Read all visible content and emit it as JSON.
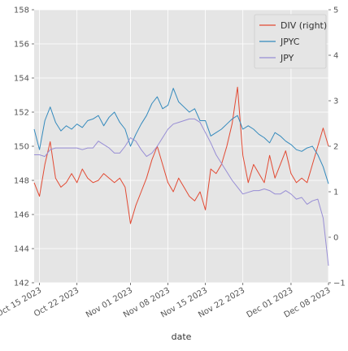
{
  "chart_data": {
    "type": "line",
    "xlabel": "date",
    "x_range": [
      "2023-10-14",
      "2023-12-08"
    ],
    "x_ticks": [
      {
        "label": "Oct 15 2023",
        "date": "2023-10-15"
      },
      {
        "label": "Oct 22 2023",
        "date": "2023-10-22"
      },
      {
        "label": "Nov 01 2023",
        "date": "2023-11-01"
      },
      {
        "label": "Nov 08 2023",
        "date": "2023-11-08"
      },
      {
        "label": "Nov 15 2023",
        "date": "2023-11-15"
      },
      {
        "label": "Nov 22 2023",
        "date": "2023-11-22"
      },
      {
        "label": "Dec 01 2023",
        "date": "2023-12-01"
      },
      {
        "label": "Dec 08 2023",
        "date": "2023-12-08"
      }
    ],
    "left_axis": {
      "ylim": [
        142,
        158
      ],
      "ticks": [
        "142",
        "144",
        "146",
        "148",
        "150",
        "152",
        "154",
        "156",
        "158"
      ]
    },
    "right_axis": {
      "ylim": [
        -1,
        5
      ],
      "ticks": [
        "−1",
        "0",
        "1",
        "2",
        "3",
        "4",
        "5"
      ]
    },
    "grid": true,
    "legend_position": "top-right",
    "series": [
      {
        "name": "DIV (right)",
        "axis": "right",
        "color": "#E24A33",
        "points": [
          [
            "2023-10-14",
            1.2
          ],
          [
            "2023-10-15",
            0.9
          ],
          [
            "2023-10-16",
            1.6
          ],
          [
            "2023-10-17",
            2.1
          ],
          [
            "2023-10-18",
            1.3
          ],
          [
            "2023-10-19",
            1.1
          ],
          [
            "2023-10-20",
            1.2
          ],
          [
            "2023-10-21",
            1.4
          ],
          [
            "2023-10-22",
            1.2
          ],
          [
            "2023-10-23",
            1.5
          ],
          [
            "2023-10-24",
            1.3
          ],
          [
            "2023-10-25",
            1.2
          ],
          [
            "2023-10-26",
            1.25
          ],
          [
            "2023-10-27",
            1.4
          ],
          [
            "2023-10-28",
            1.3
          ],
          [
            "2023-10-29",
            1.2
          ],
          [
            "2023-10-30",
            1.3
          ],
          [
            "2023-10-31",
            1.1
          ],
          [
            "2023-11-01",
            0.3
          ],
          [
            "2023-11-02",
            0.7
          ],
          [
            "2023-11-03",
            1.0
          ],
          [
            "2023-11-04",
            1.3
          ],
          [
            "2023-11-05",
            1.7
          ],
          [
            "2023-11-06",
            2.0
          ],
          [
            "2023-11-07",
            1.6
          ],
          [
            "2023-11-08",
            1.2
          ],
          [
            "2023-11-09",
            1.0
          ],
          [
            "2023-11-10",
            1.3
          ],
          [
            "2023-11-11",
            1.1
          ],
          [
            "2023-11-12",
            0.9
          ],
          [
            "2023-11-13",
            0.8
          ],
          [
            "2023-11-14",
            1.0
          ],
          [
            "2023-11-15",
            0.6
          ],
          [
            "2023-11-16",
            1.5
          ],
          [
            "2023-11-17",
            1.4
          ],
          [
            "2023-11-18",
            1.6
          ],
          [
            "2023-11-19",
            2.0
          ],
          [
            "2023-11-20",
            2.5
          ],
          [
            "2023-11-21",
            3.3
          ],
          [
            "2023-11-22",
            1.8
          ],
          [
            "2023-11-23",
            1.2
          ],
          [
            "2023-11-24",
            1.6
          ],
          [
            "2023-11-25",
            1.4
          ],
          [
            "2023-11-26",
            1.2
          ],
          [
            "2023-11-27",
            1.8
          ],
          [
            "2023-11-28",
            1.3
          ],
          [
            "2023-11-29",
            1.6
          ],
          [
            "2023-11-30",
            1.9
          ],
          [
            "2023-12-01",
            1.4
          ],
          [
            "2023-12-02",
            1.2
          ],
          [
            "2023-12-03",
            1.3
          ],
          [
            "2023-12-04",
            1.2
          ],
          [
            "2023-12-05",
            1.6
          ],
          [
            "2023-12-06",
            2.0
          ],
          [
            "2023-12-07",
            2.4
          ],
          [
            "2023-12-08",
            2.0
          ]
        ]
      },
      {
        "name": "JPYC",
        "axis": "left",
        "color": "#348ABD",
        "points": [
          [
            "2023-10-14",
            151.0
          ],
          [
            "2023-10-15",
            149.8
          ],
          [
            "2023-10-16",
            151.5
          ],
          [
            "2023-10-17",
            152.3
          ],
          [
            "2023-10-18",
            151.4
          ],
          [
            "2023-10-19",
            150.9
          ],
          [
            "2023-10-20",
            151.2
          ],
          [
            "2023-10-21",
            151.0
          ],
          [
            "2023-10-22",
            151.3
          ],
          [
            "2023-10-23",
            151.1
          ],
          [
            "2023-10-24",
            151.5
          ],
          [
            "2023-10-25",
            151.6
          ],
          [
            "2023-10-26",
            151.8
          ],
          [
            "2023-10-27",
            151.2
          ],
          [
            "2023-10-28",
            151.7
          ],
          [
            "2023-10-29",
            152.0
          ],
          [
            "2023-10-30",
            151.4
          ],
          [
            "2023-10-31",
            151.0
          ],
          [
            "2023-11-01",
            150.0
          ],
          [
            "2023-11-02",
            150.7
          ],
          [
            "2023-11-03",
            151.3
          ],
          [
            "2023-11-04",
            151.8
          ],
          [
            "2023-11-05",
            152.5
          ],
          [
            "2023-11-06",
            152.9
          ],
          [
            "2023-11-07",
            152.2
          ],
          [
            "2023-11-08",
            152.4
          ],
          [
            "2023-11-09",
            153.4
          ],
          [
            "2023-11-10",
            152.6
          ],
          [
            "2023-11-11",
            152.3
          ],
          [
            "2023-11-12",
            152.0
          ],
          [
            "2023-11-13",
            152.2
          ],
          [
            "2023-11-14",
            151.5
          ],
          [
            "2023-11-15",
            151.5
          ],
          [
            "2023-11-16",
            150.6
          ],
          [
            "2023-11-17",
            150.8
          ],
          [
            "2023-11-18",
            151.0
          ],
          [
            "2023-11-19",
            151.3
          ],
          [
            "2023-11-20",
            151.6
          ],
          [
            "2023-11-21",
            151.8
          ],
          [
            "2023-11-22",
            151.0
          ],
          [
            "2023-11-23",
            151.2
          ],
          [
            "2023-11-24",
            151.0
          ],
          [
            "2023-11-25",
            150.7
          ],
          [
            "2023-11-26",
            150.5
          ],
          [
            "2023-11-27",
            150.2
          ],
          [
            "2023-11-28",
            150.8
          ],
          [
            "2023-11-29",
            150.6
          ],
          [
            "2023-11-30",
            150.3
          ],
          [
            "2023-12-01",
            150.1
          ],
          [
            "2023-12-02",
            149.8
          ],
          [
            "2023-12-03",
            149.7
          ],
          [
            "2023-12-04",
            149.9
          ],
          [
            "2023-12-05",
            150.0
          ],
          [
            "2023-12-06",
            149.5
          ],
          [
            "2023-12-07",
            148.8
          ],
          [
            "2023-12-08",
            147.8
          ]
        ]
      },
      {
        "name": "JPY",
        "axis": "left",
        "color": "#988ED5",
        "points": [
          [
            "2023-10-14",
            149.5
          ],
          [
            "2023-10-15",
            149.5
          ],
          [
            "2023-10-16",
            149.4
          ],
          [
            "2023-10-17",
            149.8
          ],
          [
            "2023-10-18",
            149.9
          ],
          [
            "2023-10-19",
            149.9
          ],
          [
            "2023-10-20",
            149.9
          ],
          [
            "2023-10-21",
            149.9
          ],
          [
            "2023-10-22",
            149.9
          ],
          [
            "2023-10-23",
            149.8
          ],
          [
            "2023-10-24",
            149.9
          ],
          [
            "2023-10-25",
            149.9
          ],
          [
            "2023-10-26",
            150.3
          ],
          [
            "2023-10-27",
            150.1
          ],
          [
            "2023-10-28",
            149.9
          ],
          [
            "2023-10-29",
            149.6
          ],
          [
            "2023-10-30",
            149.6
          ],
          [
            "2023-10-31",
            150.0
          ],
          [
            "2023-11-01",
            150.5
          ],
          [
            "2023-11-02",
            150.3
          ],
          [
            "2023-11-03",
            149.8
          ],
          [
            "2023-11-04",
            149.4
          ],
          [
            "2023-11-05",
            149.6
          ],
          [
            "2023-11-06",
            150.0
          ],
          [
            "2023-11-07",
            150.5
          ],
          [
            "2023-11-08",
            151.0
          ],
          [
            "2023-11-09",
            151.3
          ],
          [
            "2023-11-10",
            151.4
          ],
          [
            "2023-11-11",
            151.5
          ],
          [
            "2023-11-12",
            151.6
          ],
          [
            "2023-11-13",
            151.6
          ],
          [
            "2023-11-14",
            151.4
          ],
          [
            "2023-11-15",
            150.8
          ],
          [
            "2023-11-16",
            150.2
          ],
          [
            "2023-11-17",
            149.5
          ],
          [
            "2023-11-18",
            149.0
          ],
          [
            "2023-11-19",
            148.5
          ],
          [
            "2023-11-20",
            148.0
          ],
          [
            "2023-11-21",
            147.6
          ],
          [
            "2023-11-22",
            147.2
          ],
          [
            "2023-11-23",
            147.3
          ],
          [
            "2023-11-24",
            147.4
          ],
          [
            "2023-11-25",
            147.4
          ],
          [
            "2023-11-26",
            147.5
          ],
          [
            "2023-11-27",
            147.4
          ],
          [
            "2023-11-28",
            147.2
          ],
          [
            "2023-11-29",
            147.2
          ],
          [
            "2023-11-30",
            147.4
          ],
          [
            "2023-12-01",
            147.2
          ],
          [
            "2023-12-02",
            146.9
          ],
          [
            "2023-12-03",
            147.0
          ],
          [
            "2023-12-04",
            146.6
          ],
          [
            "2023-12-05",
            146.8
          ],
          [
            "2023-12-06",
            146.9
          ],
          [
            "2023-12-07",
            145.8
          ],
          [
            "2023-12-08",
            143.0
          ]
        ]
      }
    ]
  }
}
